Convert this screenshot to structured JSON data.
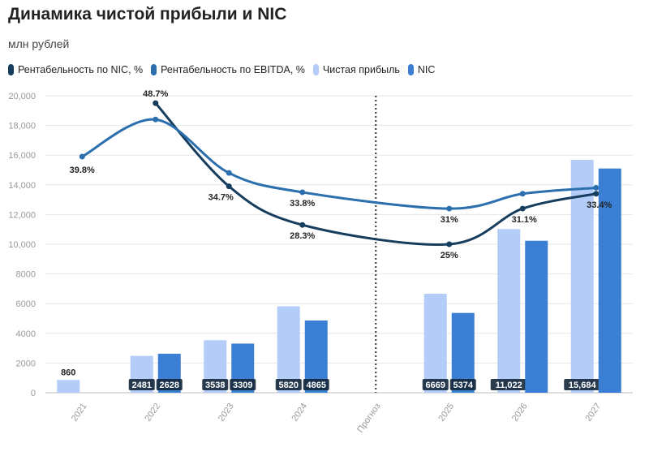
{
  "chart_data": {
    "type": "bar",
    "title": "Динамика чистой прибыли и NIC",
    "subtitle": "млн рублей",
    "categories": [
      "2021",
      "2022",
      "2023",
      "2024",
      "Прогноз",
      "2025",
      "2026",
      "2027"
    ],
    "ylim": [
      0,
      20000
    ],
    "yticks": [
      "0",
      "2000",
      "4000",
      "6000",
      "8000",
      "10,000",
      "12,000",
      "14,000",
      "16,000",
      "18,000",
      "20,000"
    ],
    "ytick_values": [
      0,
      2000,
      4000,
      6000,
      8000,
      10000,
      12000,
      14000,
      16000,
      18000,
      20000
    ],
    "legend_position": "top-left",
    "series": [
      {
        "name": "Рентабельность по NIC, %",
        "kind": "line",
        "color": "#163d5e",
        "values": [
          null,
          19500,
          13900,
          11300,
          null,
          10000,
          12400,
          13400
        ],
        "labels": [
          null,
          "48.7%",
          "34.7%",
          "28.3%",
          null,
          "25%",
          "31.1%",
          "33.4%"
        ]
      },
      {
        "name": "Рентабельность по EBITDA, %",
        "kind": "line",
        "color": "#2b6fae",
        "values": [
          15900,
          18400,
          14800,
          13500,
          null,
          12400,
          13400,
          13800
        ],
        "labels": [
          "39.8%",
          null,
          null,
          "33.8%",
          null,
          "31%",
          null,
          null
        ]
      },
      {
        "name": "Чистая прибыль",
        "kind": "bar",
        "color": "#b3cdf8",
        "values": [
          860,
          2481,
          3538,
          5820,
          null,
          6669,
          11022,
          15684
        ],
        "labels": [
          "860",
          "2481",
          "3538",
          "5820",
          null,
          "6669",
          "11,022",
          "15,684"
        ]
      },
      {
        "name": "NIC",
        "kind": "bar",
        "color": "#3b7fd4",
        "values": [
          null,
          2628,
          3309,
          4865,
          null,
          5374,
          10233,
          15100
        ],
        "labels": [
          null,
          "2628",
          "3309",
          "4865",
          null,
          "5374",
          null,
          null
        ]
      }
    ]
  }
}
